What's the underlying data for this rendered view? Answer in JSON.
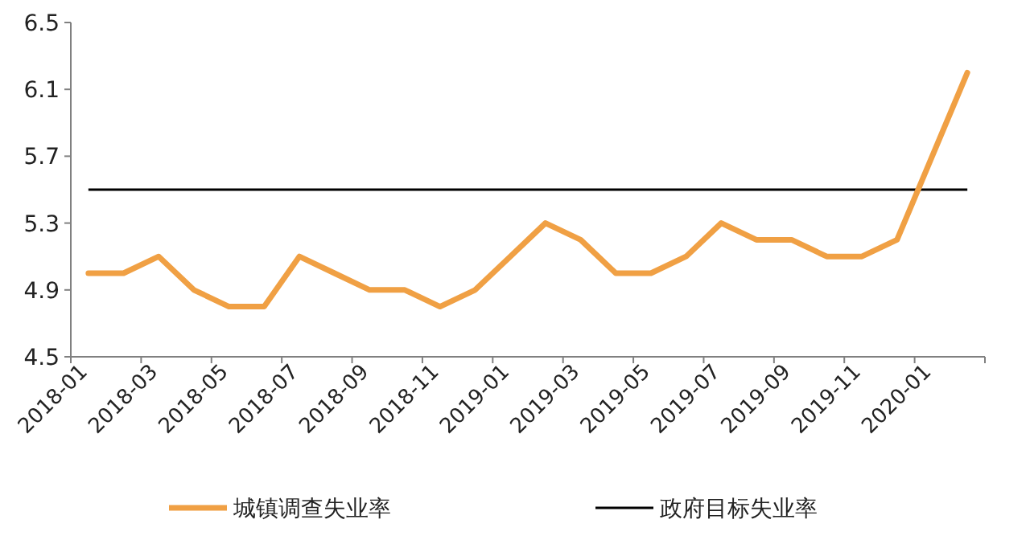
{
  "chart_data": {
    "type": "line",
    "categories": [
      "2018-01",
      null,
      "2018-03",
      null,
      "2018-05",
      null,
      "2018-07",
      null,
      "2018-09",
      null,
      "2018-11",
      null,
      "2019-01",
      null,
      "2019-03",
      null,
      "2019-05",
      null,
      "2019-07",
      null,
      "2019-09",
      null,
      "2019-11",
      null,
      "2020-01",
      null
    ],
    "series": [
      {
        "name": "城镇调查失业率",
        "color": "#f0a044",
        "values": [
          5.0,
          5.0,
          5.1,
          4.9,
          4.8,
          4.8,
          5.1,
          5.0,
          4.9,
          4.9,
          4.8,
          4.9,
          5.1,
          5.3,
          5.2,
          5.0,
          5.0,
          5.1,
          5.3,
          5.2,
          5.2,
          5.1,
          5.1,
          5.2,
          5.7,
          6.2
        ]
      }
    ],
    "ref_lines": [
      {
        "axis": "y",
        "value": 5.5,
        "label": "政府目标失业率",
        "color": "#000000",
        "line_style": "solid"
      }
    ],
    "ylim": [
      4.5,
      6.5
    ],
    "yticks": [
      4.5,
      4.9,
      5.3,
      5.7,
      6.1,
      6.5
    ],
    "grid": false,
    "legend": "bottom",
    "marker": "none",
    "line_style": "solid"
  }
}
